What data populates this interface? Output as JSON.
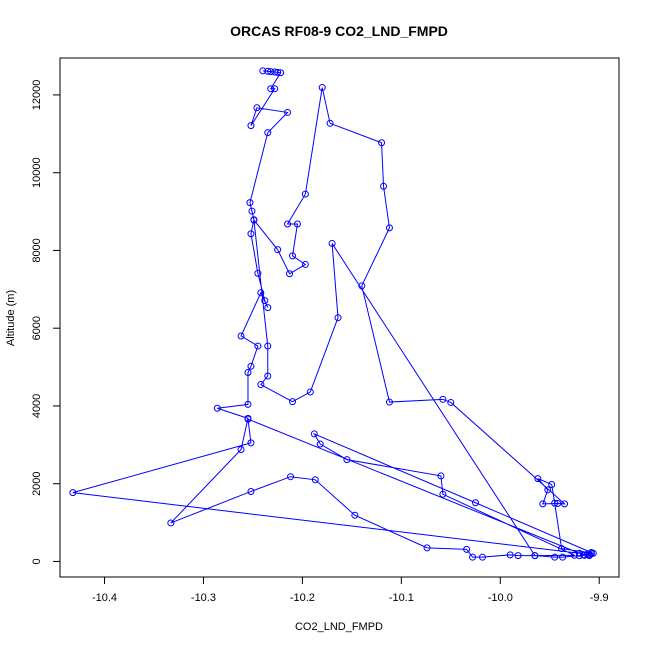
{
  "chart_data": {
    "type": "line",
    "title": "ORCAS RF08-9 CO2_LND_FMPD",
    "xlabel": "CO2_LND_FMPD",
    "ylabel": "Altitude (m)",
    "xlim": [
      -10.445,
      -9.88
    ],
    "ylim": [
      -400,
      12950
    ],
    "xticks": [
      -10.4,
      -10.3,
      -10.2,
      -10.1,
      -10.0,
      -9.9
    ],
    "xtick_labels": [
      "-10.4",
      "-10.3",
      "-10.2",
      "-10.1",
      "-10.0",
      "-9.9"
    ],
    "yticks": [
      0,
      2000,
      4000,
      6000,
      8000,
      10000,
      12000
    ],
    "ytick_labels": [
      "0",
      "2000",
      "4000",
      "6000",
      "8000",
      "10000",
      "12000"
    ],
    "grid": false,
    "series_color": "#0000ff",
    "series": [
      {
        "points": [
          [
            -10.24,
            12620
          ],
          [
            -10.235,
            12610
          ],
          [
            -10.232,
            12600
          ],
          [
            -10.228,
            12590
          ],
          [
            -10.225,
            12580
          ],
          [
            -10.222,
            12570
          ],
          [
            -10.232,
            12160
          ],
          [
            -10.228,
            12160
          ],
          [
            -10.252,
            11210
          ],
          [
            -10.246,
            11670
          ],
          [
            -10.215,
            11550
          ],
          [
            -10.235,
            11030
          ],
          [
            -10.253,
            9230
          ],
          [
            -10.251,
            9010
          ],
          [
            -10.249,
            8790
          ],
          [
            -10.252,
            8430
          ],
          [
            -10.245,
            7410
          ],
          [
            -10.238,
            6710
          ],
          [
            -10.235,
            6530
          ],
          [
            -10.242,
            6910
          ],
          [
            -10.262,
            5800
          ],
          [
            -10.245,
            5540
          ],
          [
            -10.252,
            5020
          ],
          [
            -10.255,
            4860
          ],
          [
            -10.255,
            4040
          ],
          [
            -10.286,
            3940
          ],
          [
            -10.255,
            3680
          ],
          [
            -10.262,
            2880
          ],
          [
            -10.333,
            990
          ],
          [
            -10.252,
            1800
          ],
          [
            -10.212,
            2180
          ],
          [
            -10.187,
            2100
          ],
          [
            -10.147,
            1190
          ],
          [
            -10.074,
            350
          ],
          [
            -10.034,
            310
          ],
          [
            -10.028,
            110
          ],
          [
            -10.018,
            110
          ],
          [
            -9.99,
            170
          ],
          [
            -9.982,
            150
          ],
          [
            -9.965,
            150
          ],
          [
            -9.945,
            110
          ],
          [
            -9.937,
            110
          ],
          [
            -9.92,
            150
          ],
          [
            -9.915,
            160
          ],
          [
            -9.91,
            180
          ],
          [
            -9.908,
            200
          ],
          [
            -9.906,
            210
          ],
          [
            -9.938,
            330
          ],
          [
            -9.945,
            1500
          ],
          [
            -9.948,
            1980
          ],
          [
            -9.962,
            2130
          ],
          [
            -9.952,
            1840
          ],
          [
            -9.957,
            1480
          ],
          [
            -9.942,
            1490
          ],
          [
            -9.935,
            1480
          ],
          [
            -10.05,
            4090
          ],
          [
            -10.058,
            4170
          ],
          [
            -10.112,
            4100
          ],
          [
            -10.14,
            7090
          ],
          [
            -10.112,
            8580
          ],
          [
            -10.118,
            9650
          ],
          [
            -10.12,
            10770
          ],
          [
            -10.172,
            11270
          ],
          [
            -10.18,
            12190
          ],
          [
            -10.197,
            9450
          ],
          [
            -10.215,
            8680
          ],
          [
            -10.205,
            8680
          ],
          [
            -10.21,
            7860
          ],
          [
            -10.197,
            7640
          ],
          [
            -10.213,
            7400
          ],
          [
            -10.225,
            8020
          ],
          [
            -10.249,
            8780
          ],
          [
            -10.235,
            5540
          ],
          [
            -10.235,
            4770
          ],
          [
            -10.242,
            4550
          ],
          [
            -10.21,
            4110
          ],
          [
            -10.192,
            4360
          ],
          [
            -10.164,
            6270
          ],
          [
            -10.17,
            8180
          ],
          [
            -9.965,
            150
          ],
          [
            -9.925,
            160
          ],
          [
            -10.058,
            1730
          ],
          [
            -10.06,
            2200
          ],
          [
            -10.155,
            2620
          ],
          [
            -10.182,
            3020
          ],
          [
            -10.188,
            3280
          ],
          [
            -10.025,
            1510
          ],
          [
            -9.908,
            230
          ],
          [
            -9.912,
            190
          ],
          [
            -9.916,
            170
          ],
          [
            -10.255,
            3660
          ],
          [
            -10.252,
            3050
          ],
          [
            -10.432,
            1770
          ],
          [
            -9.92,
            210
          ],
          [
            -9.91,
            150
          ]
        ]
      }
    ]
  }
}
